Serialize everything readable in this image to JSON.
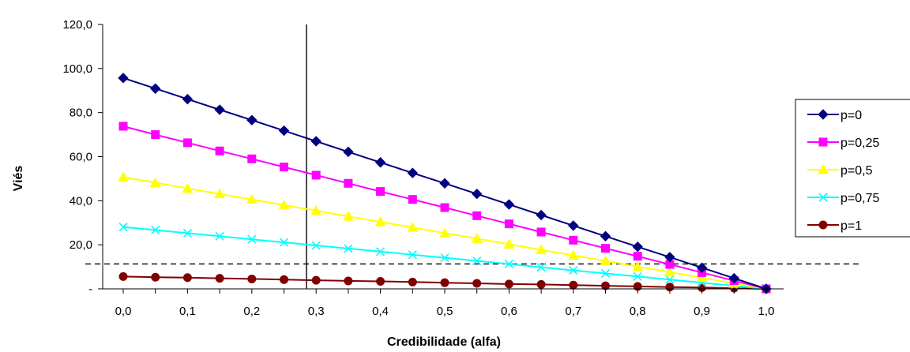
{
  "chart_data": {
    "type": "line",
    "title": "",
    "xlabel": "Credibilidade (alfa)",
    "ylabel": "Viés",
    "ylim": [
      0,
      120
    ],
    "yticks": [
      0,
      20,
      40,
      60,
      80,
      100,
      120
    ],
    "ytick_labels": [
      "-",
      "20,0",
      "40,0",
      "60,0",
      "80,0",
      "100,0",
      "120,0"
    ],
    "xticks": [
      0,
      0.1,
      0.2,
      0.3,
      0.4,
      0.5,
      0.6,
      0.7,
      0.8,
      0.9,
      1.0
    ],
    "xtick_labels": [
      "0,0",
      "0,1",
      "0,2",
      "0,3",
      "0,4",
      "0,5",
      "0,6",
      "0,7",
      "0,8",
      "0,9",
      "1,0"
    ],
    "x": [
      0,
      0.05,
      0.1,
      0.15,
      0.2,
      0.25,
      0.3,
      0.35,
      0.4,
      0.45,
      0.5,
      0.55,
      0.6,
      0.65,
      0.7,
      0.75,
      0.8,
      0.85,
      0.9,
      0.95,
      1.0
    ],
    "series": [
      {
        "name": "p=0",
        "color": "#000080",
        "marker": "diamond",
        "values": [
          95.7,
          90.9,
          86.1,
          81.3,
          76.6,
          71.8,
          67.0,
          62.2,
          57.4,
          52.6,
          47.9,
          43.1,
          38.3,
          33.5,
          28.7,
          23.9,
          19.1,
          14.4,
          9.6,
          4.8,
          0
        ]
      },
      {
        "name": "p=0,25",
        "color": "#FF00FF",
        "marker": "square",
        "values": [
          73.8,
          70.0,
          66.3,
          62.6,
          59.0,
          55.3,
          51.6,
          47.9,
          44.2,
          40.6,
          36.9,
          33.2,
          29.5,
          25.8,
          22.1,
          18.4,
          14.8,
          11.1,
          7.4,
          3.7,
          0
        ]
      },
      {
        "name": "p=0,5",
        "color": "#FFFF00",
        "marker": "triangle",
        "values": [
          50.7,
          48.2,
          45.6,
          43.1,
          40.6,
          38.0,
          35.5,
          32.9,
          30.4,
          27.9,
          25.3,
          22.8,
          20.3,
          17.7,
          15.2,
          12.7,
          10.1,
          7.6,
          5.1,
          2.5,
          0
        ]
      },
      {
        "name": "p=0,75",
        "color": "#00FFFF",
        "marker": "x",
        "values": [
          28.1,
          26.7,
          25.3,
          23.9,
          22.5,
          21.1,
          19.7,
          18.3,
          16.9,
          15.5,
          14.1,
          12.7,
          11.3,
          9.8,
          8.4,
          7.0,
          5.6,
          4.2,
          2.8,
          1.4,
          0
        ]
      },
      {
        "name": "p=1",
        "color": "#800000",
        "marker": "circle",
        "values": [
          5.6,
          5.3,
          5.1,
          4.8,
          4.5,
          4.2,
          3.9,
          3.6,
          3.4,
          3.1,
          2.8,
          2.5,
          2.2,
          2.0,
          1.7,
          1.4,
          1.1,
          0.8,
          0.6,
          0.3,
          0
        ]
      }
    ],
    "vertical_line_x": 0.285,
    "horizontal_dashed_y": 11.3,
    "legend_position": "right"
  }
}
